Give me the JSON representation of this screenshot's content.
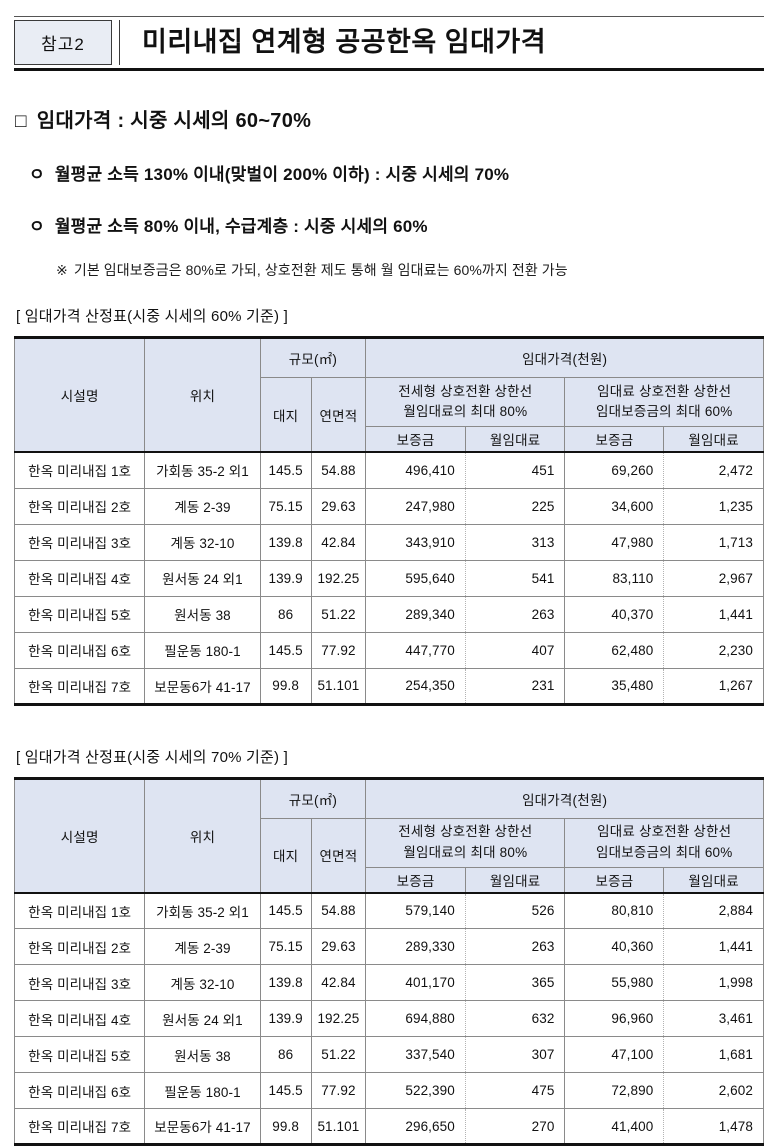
{
  "header": {
    "badge": "참고2",
    "title": "미리내집 연계형 공공한옥 임대가격"
  },
  "summary": {
    "heading_marker": "□",
    "heading_text": "임대가격 : 시중 시세의 60~70%",
    "bullets": [
      {
        "marker": "ㅇ",
        "text": "월평균 소득 130% 이내(맞벌이 200% 이하) : 시중 시세의 70%"
      },
      {
        "marker": "ㅇ",
        "text": "월평균 소득 80% 이내, 수급계층 : 시중 시세의 60%"
      }
    ],
    "note_marker": "※",
    "note_text": "기본 임대보증금은 80%로 가되, 상호전환 제도 통해 월 임대료는 60%까지 전환 가능"
  },
  "table_header": {
    "facility": "시설명",
    "location": "위치",
    "size_group": "규모(㎡)",
    "land": "대지",
    "floor_area": "연면적",
    "price_group": "임대가격(천원)",
    "jeonse_group_line1": "전세형 상호전환 상한선",
    "jeonse_group_line2": "월임대료의 최대 80%",
    "rent_group_line1": "임대료 상호전환 상한선",
    "rent_group_line2": "임대보증금의 최대 60%",
    "deposit": "보증금",
    "monthly_rent": "월임대료"
  },
  "tables": [
    {
      "title": "[ 임대가격 산정표(시중 시세의 60% 기준) ]",
      "rows": [
        [
          "한옥 미리내집 1호",
          "가회동 35-2 외1",
          "145.5",
          "54.88",
          "496,410",
          "451",
          "69,260",
          "2,472"
        ],
        [
          "한옥 미리내집 2호",
          "계동 2-39",
          "75.15",
          "29.63",
          "247,980",
          "225",
          "34,600",
          "1,235"
        ],
        [
          "한옥 미리내집 3호",
          "계동 32-10",
          "139.8",
          "42.84",
          "343,910",
          "313",
          "47,980",
          "1,713"
        ],
        [
          "한옥 미리내집 4호",
          "원서동 24 외1",
          "139.9",
          "192.25",
          "595,640",
          "541",
          "83,110",
          "2,967"
        ],
        [
          "한옥 미리내집 5호",
          "원서동 38",
          "86",
          "51.22",
          "289,340",
          "263",
          "40,370",
          "1,441"
        ],
        [
          "한옥 미리내집 6호",
          "필운동 180-1",
          "145.5",
          "77.92",
          "447,770",
          "407",
          "62,480",
          "2,230"
        ],
        [
          "한옥 미리내집 7호",
          "보문동6가 41-17",
          "99.8",
          "51.101",
          "254,350",
          "231",
          "35,480",
          "1,267"
        ]
      ]
    },
    {
      "title": "[ 임대가격 산정표(시중 시세의 70% 기준) ]",
      "rows": [
        [
          "한옥 미리내집 1호",
          "가회동 35-2 외1",
          "145.5",
          "54.88",
          "579,140",
          "526",
          "80,810",
          "2,884"
        ],
        [
          "한옥 미리내집 2호",
          "계동 2-39",
          "75.15",
          "29.63",
          "289,330",
          "263",
          "40,360",
          "1,441"
        ],
        [
          "한옥 미리내집 3호",
          "계동 32-10",
          "139.8",
          "42.84",
          "401,170",
          "365",
          "55,980",
          "1,998"
        ],
        [
          "한옥 미리내집 4호",
          "원서동 24 외1",
          "139.9",
          "192.25",
          "694,880",
          "632",
          "96,960",
          "3,461"
        ],
        [
          "한옥 미리내집 5호",
          "원서동 38",
          "86",
          "51.22",
          "337,540",
          "307",
          "47,100",
          "1,681"
        ],
        [
          "한옥 미리내집 6호",
          "필운동 180-1",
          "145.5",
          "77.92",
          "522,390",
          "475",
          "72,890",
          "2,602"
        ],
        [
          "한옥 미리내집 7호",
          "보문동6가 41-17",
          "99.8",
          "51.101",
          "296,650",
          "270",
          "41,400",
          "1,478"
        ]
      ]
    }
  ],
  "colors": {
    "table_header_bg": "#dee4f2",
    "badge_bg": "#e9edf4",
    "rule_color": "#111111"
  }
}
